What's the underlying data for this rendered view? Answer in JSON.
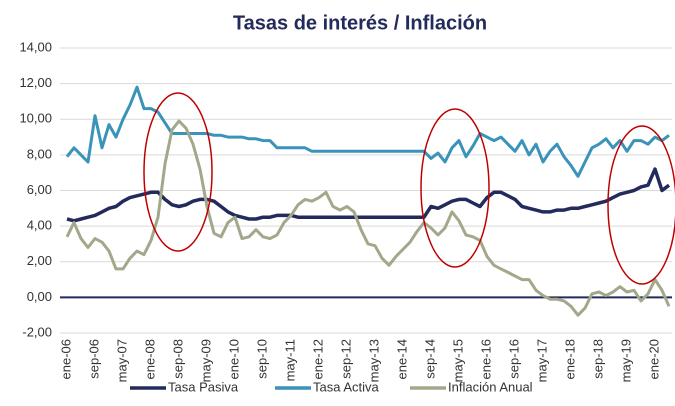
{
  "chart_data": {
    "type": "line",
    "title": "Tasas de interés / Inflación",
    "categories": [
      "ene-06",
      null,
      null,
      null,
      "sep-06",
      null,
      null,
      null,
      "may-07",
      null,
      null,
      null,
      "ene-08",
      null,
      null,
      null,
      "sep-08",
      null,
      null,
      null,
      "may-09",
      null,
      null,
      null,
      "ene-10",
      null,
      null,
      null,
      "sep-10",
      null,
      null,
      null,
      "may-11",
      null,
      null,
      null,
      "ene-12",
      null,
      null,
      null,
      "sep-12",
      null,
      null,
      null,
      "may-13",
      null,
      null,
      null,
      "ene-14",
      null,
      null,
      null,
      "sep-14",
      null,
      null,
      null,
      "may-15",
      null,
      null,
      null,
      "ene-16",
      null,
      null,
      null,
      "sep-16",
      null,
      null,
      null,
      "may-17",
      null,
      null,
      null,
      "ene-18",
      null,
      null,
      null,
      "sep-18",
      null,
      null,
      null,
      "may-19",
      null,
      null,
      null,
      "ene-20",
      null,
      null
    ],
    "series": [
      {
        "name": "Tasa Pasiva",
        "color": "#232a5c",
        "values": [
          4.4,
          4.3,
          4.4,
          4.5,
          4.6,
          4.8,
          5.0,
          5.1,
          5.4,
          5.6,
          5.7,
          5.8,
          5.9,
          5.9,
          5.5,
          5.2,
          5.1,
          5.2,
          5.4,
          5.5,
          5.5,
          5.4,
          5.1,
          4.8,
          4.6,
          4.5,
          4.4,
          4.4,
          4.5,
          4.5,
          4.6,
          4.6,
          4.6,
          4.5,
          4.5,
          4.5,
          4.5,
          4.5,
          4.5,
          4.5,
          4.5,
          4.5,
          4.5,
          4.5,
          4.5,
          4.5,
          4.5,
          4.5,
          4.5,
          4.5,
          4.5,
          4.5,
          5.1,
          5.0,
          5.2,
          5.4,
          5.5,
          5.5,
          5.3,
          5.1,
          5.6,
          5.9,
          5.9,
          5.7,
          5.5,
          5.1,
          5.0,
          4.9,
          4.8,
          4.8,
          4.9,
          4.9,
          5.0,
          5.0,
          5.1,
          5.2,
          5.3,
          5.4,
          5.6,
          5.8,
          5.9,
          6.0,
          6.2,
          6.3,
          7.2,
          6.0,
          6.3
        ]
      },
      {
        "name": "Tasa Activa",
        "color": "#3a93b8",
        "values": [
          7.9,
          8.4,
          8.0,
          7.6,
          10.2,
          8.4,
          9.7,
          9.0,
          10.0,
          10.8,
          11.8,
          10.6,
          10.6,
          10.4,
          9.8,
          9.2,
          9.2,
          9.2,
          9.2,
          9.2,
          9.2,
          9.1,
          9.1,
          9.0,
          9.0,
          9.0,
          8.9,
          8.9,
          8.8,
          8.8,
          8.4,
          8.4,
          8.4,
          8.4,
          8.4,
          8.2,
          8.2,
          8.2,
          8.2,
          8.2,
          8.2,
          8.2,
          8.2,
          8.2,
          8.2,
          8.2,
          8.2,
          8.2,
          8.2,
          8.2,
          8.2,
          8.2,
          7.8,
          8.1,
          7.6,
          8.4,
          8.8,
          7.9,
          8.5,
          9.2,
          9.0,
          8.8,
          9.0,
          8.6,
          8.2,
          8.8,
          8.0,
          8.6,
          7.6,
          8.2,
          8.6,
          7.9,
          7.4,
          6.8,
          7.6,
          8.4,
          8.6,
          8.9,
          8.4,
          8.8,
          8.2,
          8.8,
          8.8,
          8.6,
          9.0,
          8.8,
          9.1
        ]
      },
      {
        "name": "Inflación Anual",
        "color": "#a3a88a",
        "values": [
          3.4,
          4.2,
          3.3,
          2.8,
          3.3,
          3.1,
          2.6,
          1.6,
          1.6,
          2.2,
          2.6,
          2.4,
          3.2,
          4.5,
          7.5,
          9.4,
          9.9,
          9.5,
          8.6,
          7.2,
          5.1,
          3.6,
          3.4,
          4.2,
          4.5,
          3.3,
          3.4,
          3.8,
          3.4,
          3.3,
          3.5,
          4.2,
          4.6,
          5.2,
          5.5,
          5.4,
          5.6,
          5.9,
          5.1,
          4.9,
          5.1,
          4.8,
          3.8,
          3.0,
          2.9,
          2.2,
          1.8,
          2.3,
          2.7,
          3.1,
          3.7,
          4.2,
          3.9,
          3.5,
          3.9,
          4.8,
          4.3,
          3.5,
          3.4,
          3.2,
          2.3,
          1.8,
          1.6,
          1.4,
          1.2,
          1.0,
          1.0,
          0.4,
          0.1,
          -0.1,
          -0.1,
          -0.2,
          -0.5,
          -1.0,
          -0.6,
          0.2,
          0.3,
          0.1,
          0.3,
          0.6,
          0.3,
          0.4,
          -0.2,
          0.2,
          1.0,
          0.4,
          -0.5
        ]
      }
    ],
    "ylim": [
      -2,
      14
    ],
    "yticks": [
      {
        "value": -2,
        "label": "-2,00"
      },
      {
        "value": 0,
        "label": "0,00"
      },
      {
        "value": 2,
        "label": "2,00"
      },
      {
        "value": 4,
        "label": "4,00"
      },
      {
        "value": 6,
        "label": "6,00"
      },
      {
        "value": 8,
        "label": "8,00"
      },
      {
        "value": 10,
        "label": "10,00"
      },
      {
        "value": 12,
        "label": "12,00"
      },
      {
        "value": 14,
        "label": "14,00"
      }
    ],
    "grid": true
  }
}
